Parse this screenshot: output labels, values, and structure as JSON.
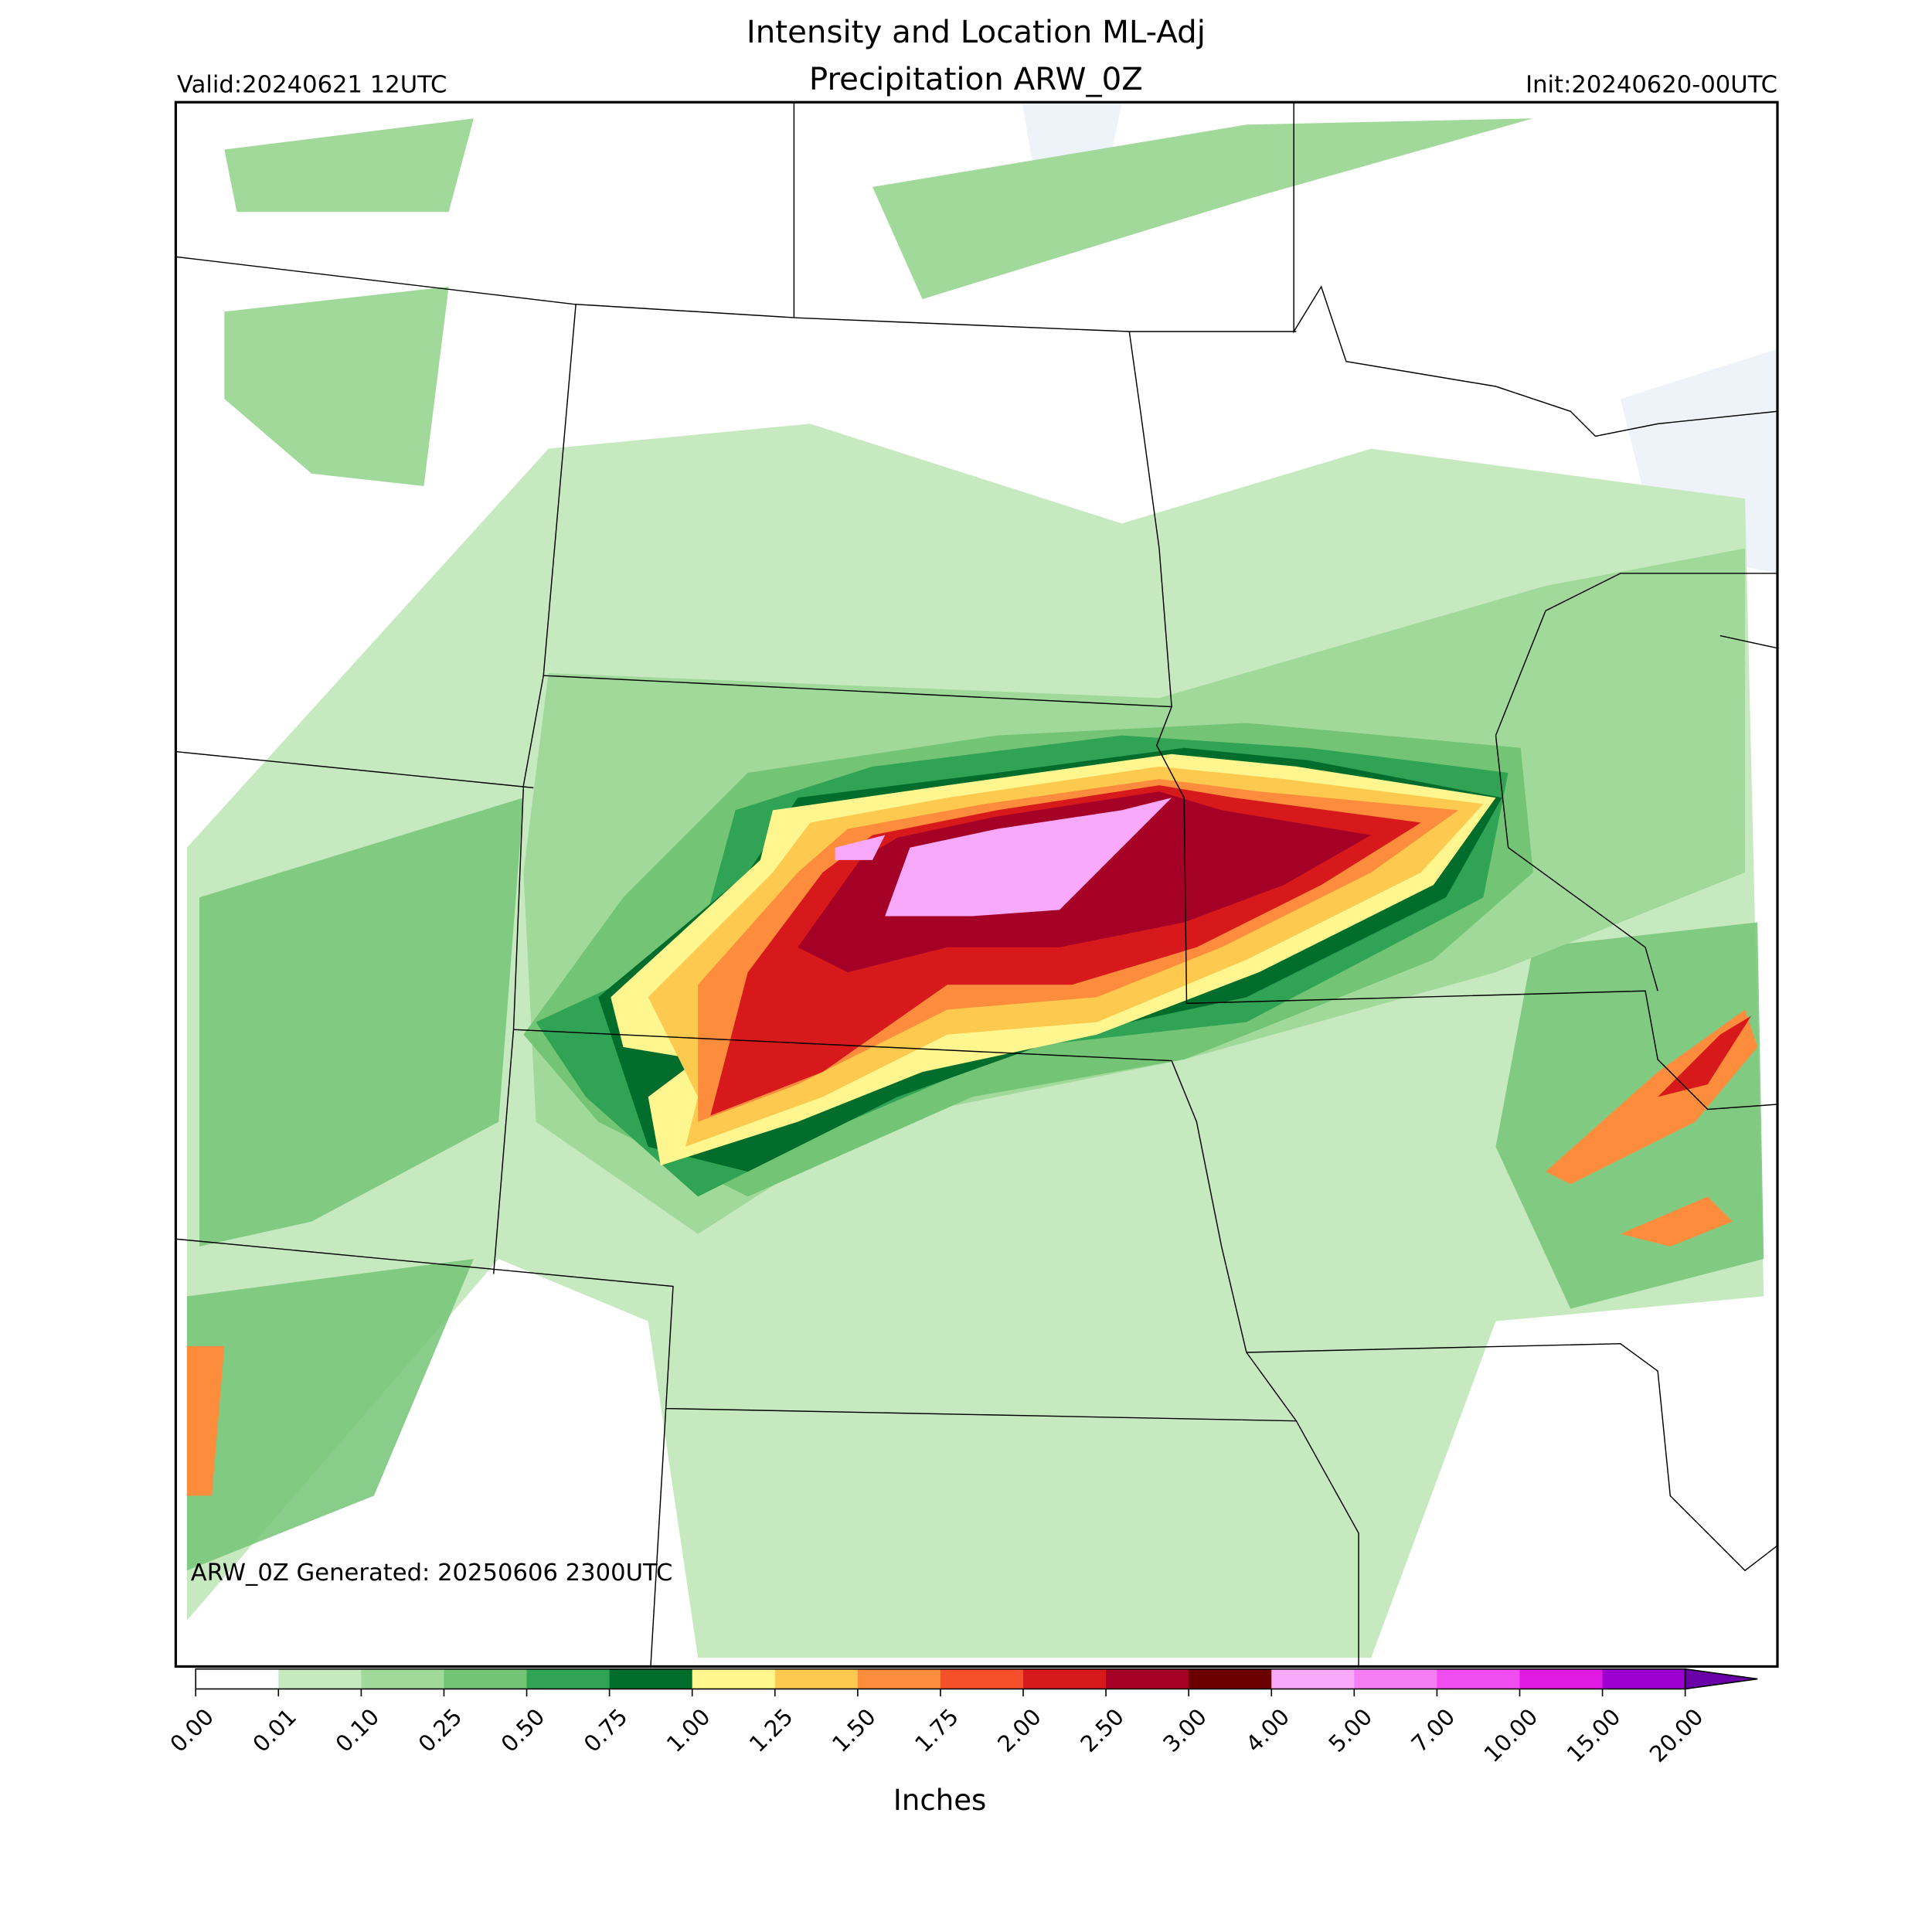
{
  "header": {
    "title_line1": "Intensity and Location ML-Adj",
    "title_line2": "Precipitation ARW_0Z",
    "valid": "Valid:20240621 12UTC",
    "init": "Init:20240620-00UTC"
  },
  "footnote": "ARW_0Z Generated: 20250606 2300UTC",
  "colorbar": {
    "label": "Inches",
    "ticks": [
      {
        "value": 0,
        "label": "0.00"
      },
      {
        "value": 0.01,
        "label": "0.01"
      },
      {
        "value": 0.1,
        "label": "0.10"
      },
      {
        "value": 0.25,
        "label": "0.25"
      },
      {
        "value": 0.5,
        "label": "0.50"
      },
      {
        "value": 0.75,
        "label": "0.75"
      },
      {
        "value": 1,
        "label": "1.00"
      },
      {
        "value": 1.25,
        "label": "1.25"
      },
      {
        "value": 1.5,
        "label": "1.50"
      },
      {
        "value": 1.75,
        "label": "1.75"
      },
      {
        "value": 2,
        "label": "2.00"
      },
      {
        "value": 2.5,
        "label": "2.50"
      },
      {
        "value": 3,
        "label": "3.00"
      },
      {
        "value": 4,
        "label": "4.00"
      },
      {
        "value": 5,
        "label": "5.00"
      },
      {
        "value": 7,
        "label": "7.00"
      },
      {
        "value": 10,
        "label": "10.00"
      },
      {
        "value": 15,
        "label": "15.00"
      },
      {
        "value": 20,
        "label": "20.00"
      }
    ],
    "colors": [
      "#ffffff",
      "#c7e9c0",
      "#a1d99b",
      "#74c476",
      "#31a354",
      "#006d2c",
      "#fff68f",
      "#fdc94f",
      "#fd8d3c",
      "#f5502a",
      "#d7191c",
      "#a50026",
      "#6b0000",
      "#f8a8f8",
      "#f57ef5",
      "#f04cf0",
      "#e01ae0",
      "#9c00d0"
    ],
    "extend_color": "#6a00a8"
  }
}
